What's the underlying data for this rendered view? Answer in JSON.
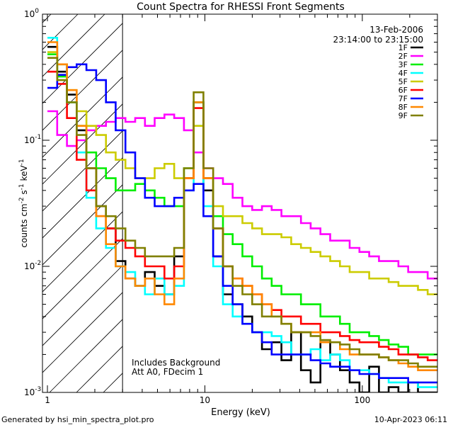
{
  "chart_data": {
    "type": "line",
    "title": "Count Spectra for RHESSI Front Segments",
    "xlabel": "Energy (keV)",
    "ylabel_parts": {
      "a": "counts cm",
      "b": "-2",
      "c": " s",
      "d": "-1",
      "e": " keV",
      "f": "-1"
    },
    "xscale": "log",
    "yscale": "log",
    "xlim": [
      0.93,
      300
    ],
    "ylim": [
      0.001,
      1
    ],
    "x_ticks": [
      {
        "v": 1,
        "label": "1"
      },
      {
        "v": 10,
        "label": "10"
      },
      {
        "v": 100,
        "label": "100"
      }
    ],
    "y_ticks": [
      {
        "v": 1,
        "base": "10",
        "exp": "0"
      },
      {
        "v": 0.1,
        "base": "10",
        "exp": "-1"
      },
      {
        "v": 0.01,
        "base": "10",
        "exp": "-2"
      },
      {
        "v": 0.001,
        "base": "10",
        "exp": "-3"
      }
    ],
    "hatch_until_kev": 3,
    "date": "13-Feb-2006",
    "time_range": "23:14:00 to 23:15:00",
    "notes": [
      "Includes Background",
      "Att A0, FDecim 1"
    ],
    "footer_left": "Generated by hsi_min_spectra_plot.pro",
    "footer_right": "10-Apr-2023 06:11",
    "legend_position": "top-right",
    "series": [
      {
        "name": "1F",
        "color": "#000000",
        "values": [
          0.55,
          0.35,
          0.23,
          0.12,
          0.06,
          0.03,
          0.02,
          0.011,
          0.008,
          0.007,
          0.009,
          0.007,
          0.006,
          0.012,
          0.05,
          0.2,
          0.04,
          0.012,
          0.006,
          0.005,
          0.004,
          0.003,
          0.0022,
          0.0025,
          0.0018,
          0.003,
          0.0015,
          0.0012,
          0.0025,
          0.002,
          0.0015,
          0.0012,
          0.001,
          0.0016,
          0.001,
          0.0011,
          0.001,
          0.0012,
          0.001,
          0.001
        ]
      },
      {
        "name": "2F",
        "color": "#ff00ff",
        "values": [
          0.17,
          0.11,
          0.09,
          0.1,
          0.12,
          0.13,
          0.14,
          0.15,
          0.14,
          0.15,
          0.13,
          0.15,
          0.16,
          0.15,
          0.12,
          0.08,
          0.06,
          0.05,
          0.045,
          0.035,
          0.03,
          0.028,
          0.03,
          0.028,
          0.025,
          0.025,
          0.022,
          0.02,
          0.018,
          0.016,
          0.016,
          0.014,
          0.013,
          0.012,
          0.011,
          0.011,
          0.01,
          0.009,
          0.009,
          0.008
        ]
      },
      {
        "name": "3F",
        "color": "#00ee00",
        "values": [
          0.48,
          0.32,
          0.2,
          0.13,
          0.08,
          0.06,
          0.05,
          0.04,
          0.04,
          0.045,
          0.04,
          0.035,
          0.03,
          0.03,
          0.06,
          0.2,
          0.05,
          0.025,
          0.018,
          0.015,
          0.012,
          0.01,
          0.008,
          0.007,
          0.006,
          0.006,
          0.005,
          0.005,
          0.004,
          0.004,
          0.0035,
          0.003,
          0.003,
          0.0028,
          0.0026,
          0.0024,
          0.0023,
          0.002,
          0.002,
          0.002
        ]
      },
      {
        "name": "4F",
        "color": "#00ffff",
        "values": [
          0.65,
          0.4,
          0.2,
          0.08,
          0.035,
          0.02,
          0.014,
          0.01,
          0.009,
          0.007,
          0.006,
          0.008,
          0.006,
          0.007,
          0.04,
          0.13,
          0.03,
          0.01,
          0.005,
          0.004,
          0.0035,
          0.003,
          0.003,
          0.0028,
          0.0025,
          0.002,
          0.002,
          0.0022,
          0.0018,
          0.002,
          0.0018,
          0.0015,
          0.0015,
          0.0014,
          0.0013,
          0.0012,
          0.0012,
          0.0012,
          0.0011,
          0.0011
        ]
      },
      {
        "name": "5F",
        "color": "#cccc00",
        "values": [
          0.5,
          0.4,
          0.25,
          0.17,
          0.13,
          0.11,
          0.08,
          0.07,
          0.06,
          0.05,
          0.05,
          0.06,
          0.065,
          0.05,
          0.05,
          0.13,
          0.05,
          0.03,
          0.025,
          0.025,
          0.022,
          0.02,
          0.018,
          0.018,
          0.017,
          0.015,
          0.014,
          0.013,
          0.012,
          0.011,
          0.01,
          0.009,
          0.009,
          0.008,
          0.008,
          0.0075,
          0.007,
          0.007,
          0.0065,
          0.006
        ]
      },
      {
        "name": "6F",
        "color": "#ff0000",
        "values": [
          0.35,
          0.28,
          0.15,
          0.07,
          0.04,
          0.025,
          0.02,
          0.016,
          0.014,
          0.012,
          0.01,
          0.01,
          0.008,
          0.01,
          0.05,
          0.18,
          0.05,
          0.02,
          0.01,
          0.008,
          0.007,
          0.006,
          0.005,
          0.0045,
          0.004,
          0.004,
          0.0035,
          0.0035,
          0.003,
          0.003,
          0.0028,
          0.0026,
          0.0025,
          0.0025,
          0.0023,
          0.0022,
          0.002,
          0.002,
          0.0019,
          0.0018
        ]
      },
      {
        "name": "7F",
        "color": "#0000ff",
        "values": [
          0.26,
          0.33,
          0.38,
          0.4,
          0.36,
          0.3,
          0.2,
          0.12,
          0.08,
          0.05,
          0.035,
          0.03,
          0.03,
          0.035,
          0.04,
          0.045,
          0.025,
          0.012,
          0.007,
          0.005,
          0.0035,
          0.003,
          0.0025,
          0.002,
          0.002,
          0.002,
          0.002,
          0.0018,
          0.0017,
          0.0016,
          0.0016,
          0.0015,
          0.0014,
          0.0014,
          0.0013,
          0.0013,
          0.0013,
          0.0012,
          0.0012,
          0.0012
        ]
      },
      {
        "name": "8F",
        "color": "#ff8800",
        "values": [
          0.6,
          0.4,
          0.25,
          0.13,
          0.06,
          0.025,
          0.015,
          0.01,
          0.008,
          0.007,
          0.008,
          0.006,
          0.005,
          0.008,
          0.05,
          0.2,
          0.05,
          0.02,
          0.01,
          0.008,
          0.007,
          0.006,
          0.005,
          0.004,
          0.0035,
          0.003,
          0.003,
          0.003,
          0.0025,
          0.0025,
          0.0022,
          0.002,
          0.002,
          0.002,
          0.0019,
          0.0018,
          0.0017,
          0.0016,
          0.0015,
          0.0015
        ]
      },
      {
        "name": "9F",
        "color": "#808000",
        "values": [
          0.45,
          0.3,
          0.2,
          0.11,
          0.06,
          0.03,
          0.025,
          0.02,
          0.016,
          0.014,
          0.012,
          0.012,
          0.012,
          0.014,
          0.06,
          0.24,
          0.06,
          0.02,
          0.01,
          0.007,
          0.006,
          0.005,
          0.004,
          0.004,
          0.0035,
          0.003,
          0.003,
          0.0028,
          0.0026,
          0.0025,
          0.0024,
          0.0022,
          0.002,
          0.002,
          0.0019,
          0.0018,
          0.0018,
          0.0017,
          0.0016,
          0.0016
        ]
      }
    ]
  }
}
